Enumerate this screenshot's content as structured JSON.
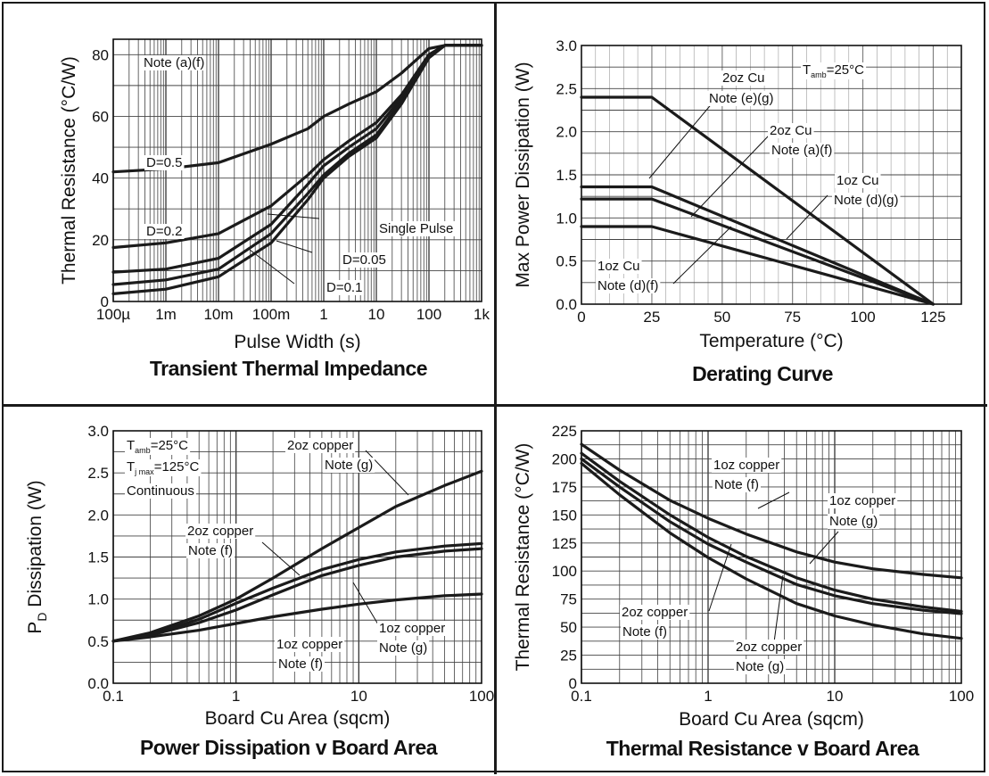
{
  "chart_data": [
    {
      "type": "line",
      "title": "Transient Thermal Impedance",
      "xlabel": "Pulse Width (s)",
      "ylabel": "Thermal Resistance (°C/W)",
      "xscale": "log",
      "xlim": [
        0.0001,
        1000
      ],
      "ylim": [
        0,
        85
      ],
      "xticks": [
        {
          "v": 0.0001,
          "label": "100µ"
        },
        {
          "v": 0.001,
          "label": "1m"
        },
        {
          "v": 0.01,
          "label": "10m"
        },
        {
          "v": 0.1,
          "label": "100m"
        },
        {
          "v": 1,
          "label": "1"
        },
        {
          "v": 10,
          "label": "10"
        },
        {
          "v": 100,
          "label": "100"
        },
        {
          "v": 1000,
          "label": "1k"
        }
      ],
      "yticks": [
        0,
        20,
        40,
        60,
        80
      ],
      "grid": true,
      "annotations": [
        "Note (a)(f)",
        "D=0.5",
        "D=0.2",
        "Single Pulse",
        "D=0.05",
        "D=0.1"
      ],
      "series": [
        {
          "x": [
            0.0001,
            0.001,
            0.01,
            0.1,
            0.5,
            1,
            3,
            10,
            30,
            100,
            200,
            1000
          ],
          "y": [
            42,
            43,
            45,
            51,
            56,
            60,
            64,
            68,
            74,
            82,
            83,
            83
          ]
        },
        {
          "x": [
            0.0001,
            0.001,
            0.01,
            0.1,
            0.5,
            1,
            3,
            10,
            30,
            100,
            200,
            1000
          ],
          "y": [
            17.5,
            19,
            22,
            31,
            41,
            46,
            52,
            58,
            67,
            80,
            83,
            83
          ]
        },
        {
          "x": [
            0.0001,
            0.001,
            0.01,
            0.1,
            0.5,
            1,
            3,
            10,
            30,
            100,
            200,
            1000
          ],
          "y": [
            9.5,
            10.5,
            14,
            25,
            38,
            44,
            50,
            56,
            66,
            80,
            83,
            83
          ]
        },
        {
          "x": [
            0.0001,
            0.001,
            0.01,
            0.1,
            0.5,
            1,
            3,
            10,
            30,
            100,
            200,
            1000
          ],
          "y": [
            5.5,
            7,
            10.5,
            22,
            35,
            41,
            48,
            54,
            65,
            79,
            83,
            83
          ]
        },
        {
          "x": [
            0.0001,
            0.001,
            0.01,
            0.1,
            0.5,
            1,
            3,
            10,
            30,
            100,
            200,
            1000
          ],
          "y": [
            2.5,
            4,
            8,
            19,
            33,
            40,
            47,
            53,
            64,
            79,
            83,
            83
          ]
        }
      ]
    },
    {
      "type": "line",
      "title": "Derating Curve",
      "xlabel": "Temperature (°C)",
      "ylabel": "Max Power Dissipation (W)",
      "xlim": [
        0,
        135
      ],
      "ylim": [
        0,
        3.0
      ],
      "xticks": [
        {
          "v": 0,
          "label": "0"
        },
        {
          "v": 25,
          "label": "25"
        },
        {
          "v": 50,
          "label": "50"
        },
        {
          "v": 75,
          "label": "75"
        },
        {
          "v": 100,
          "label": "100"
        },
        {
          "v": 125,
          "label": "125"
        }
      ],
      "yticks": [
        {
          "v": 0,
          "label": "0.0"
        },
        {
          "v": 0.5,
          "label": "0.5"
        },
        {
          "v": 1,
          "label": "1.0"
        },
        {
          "v": 1.5,
          "label": "1.5"
        },
        {
          "v": 2,
          "label": "2.0"
        },
        {
          "v": 2.5,
          "label": "2.5"
        },
        {
          "v": 3,
          "label": "3.0"
        }
      ],
      "grid": true,
      "annotations": [
        "2oz Cu",
        "Note (e)(g)",
        "2oz Cu",
        "Note (a)(f)",
        "1oz Cu",
        "Note (d)(g)",
        "1oz Cu",
        "Note (d)(f)",
        "T",
        "amb",
        "=25°C"
      ],
      "series": [
        {
          "x": [
            0,
            25,
            125
          ],
          "y": [
            2.4,
            2.4,
            0
          ]
        },
        {
          "x": [
            0,
            25,
            125
          ],
          "y": [
            1.36,
            1.36,
            0
          ]
        },
        {
          "x": [
            0,
            25,
            125
          ],
          "y": [
            1.22,
            1.22,
            0
          ]
        },
        {
          "x": [
            0,
            25,
            125
          ],
          "y": [
            0.9,
            0.9,
            0
          ]
        }
      ]
    },
    {
      "type": "line",
      "title": "Power Dissipation v Board Area",
      "xlabel": "Board Cu Area (sqcm)",
      "ylabel": "P",
      "ylabel_sub": "D",
      "ylabel_rest": " Dissipation (W)",
      "xscale": "log",
      "xlim": [
        0.1,
        100
      ],
      "ylim": [
        0,
        3.0
      ],
      "xticks": [
        {
          "v": 0.1,
          "label": "0.1"
        },
        {
          "v": 1,
          "label": "1"
        },
        {
          "v": 10,
          "label": "10"
        },
        {
          "v": 100,
          "label": "100"
        }
      ],
      "yticks": [
        {
          "v": 0,
          "label": "0.0"
        },
        {
          "v": 0.5,
          "label": "0.5"
        },
        {
          "v": 1,
          "label": "1.0"
        },
        {
          "v": 1.5,
          "label": "1.5"
        },
        {
          "v": 2,
          "label": "2.0"
        },
        {
          "v": 2.5,
          "label": "2.5"
        },
        {
          "v": 3,
          "label": "3.0"
        }
      ],
      "grid": true,
      "annotations": [
        "2oz copper",
        "Note (g)",
        "2oz copper",
        "Note (f)",
        "1oz copper",
        "Note (g)",
        "1oz copper",
        "Note (f)",
        "T",
        "amb",
        "=25°C",
        "T",
        "j max",
        "=125°C",
        "Continuous"
      ],
      "series": [
        {
          "x": [
            0.1,
            0.2,
            0.5,
            1,
            2,
            5,
            10,
            20,
            50,
            100
          ],
          "y": [
            0.5,
            0.6,
            0.8,
            1.0,
            1.25,
            1.6,
            1.85,
            2.1,
            2.35,
            2.52
          ]
        },
        {
          "x": [
            0.1,
            0.2,
            0.5,
            1,
            2,
            5,
            10,
            20,
            50,
            100
          ],
          "y": [
            0.5,
            0.58,
            0.76,
            0.95,
            1.13,
            1.35,
            1.47,
            1.56,
            1.63,
            1.66
          ]
        },
        {
          "x": [
            0.1,
            0.2,
            0.5,
            1,
            2,
            5,
            10,
            20,
            50,
            100
          ],
          "y": [
            0.5,
            0.57,
            0.72,
            0.87,
            1.05,
            1.28,
            1.4,
            1.5,
            1.57,
            1.6
          ]
        },
        {
          "x": [
            0.1,
            0.2,
            0.5,
            1,
            2,
            5,
            10,
            20,
            50,
            100
          ],
          "y": [
            0.5,
            0.55,
            0.63,
            0.71,
            0.79,
            0.88,
            0.94,
            0.99,
            1.04,
            1.06
          ]
        }
      ]
    },
    {
      "type": "line",
      "title": "Thermal Resistance v Board Area",
      "xlabel": "Board Cu Area (sqcm)",
      "ylabel": "Thermal Resistance (°C/W)",
      "xscale": "log",
      "xlim": [
        0.1,
        100
      ],
      "ylim": [
        0,
        225
      ],
      "xticks": [
        {
          "v": 0.1,
          "label": "0.1"
        },
        {
          "v": 1,
          "label": "1"
        },
        {
          "v": 10,
          "label": "10"
        },
        {
          "v": 100,
          "label": "100"
        }
      ],
      "yticks": [
        0,
        25,
        50,
        75,
        100,
        125,
        150,
        175,
        200,
        225
      ],
      "grid": true,
      "annotations": [
        "1oz copper",
        "Note (f)",
        "1oz copper",
        "Note (g)",
        "2oz copper",
        "Note (f)",
        "2oz copper",
        "Note (g)"
      ],
      "series": [
        {
          "x": [
            0.1,
            0.2,
            0.5,
            1,
            2,
            5,
            10,
            20,
            50,
            100
          ],
          "y": [
            213,
            190,
            163,
            147,
            133,
            117,
            108,
            102,
            97,
            94
          ]
        },
        {
          "x": [
            0.1,
            0.2,
            0.5,
            1,
            2,
            5,
            10,
            20,
            50,
            100
          ],
          "y": [
            205,
            180,
            150,
            130,
            113,
            94,
            83,
            75,
            68,
            64
          ]
        },
        {
          "x": [
            0.1,
            0.2,
            0.5,
            1,
            2,
            5,
            10,
            20,
            50,
            100
          ],
          "y": [
            200,
            175,
            144,
            124,
            108,
            88,
            78,
            71,
            65,
            62
          ]
        },
        {
          "x": [
            0.1,
            0.2,
            0.5,
            1,
            2,
            5,
            10,
            20,
            50,
            100
          ],
          "y": [
            196,
            168,
            134,
            112,
            93,
            71,
            60,
            52,
            44,
            40
          ]
        }
      ]
    }
  ]
}
